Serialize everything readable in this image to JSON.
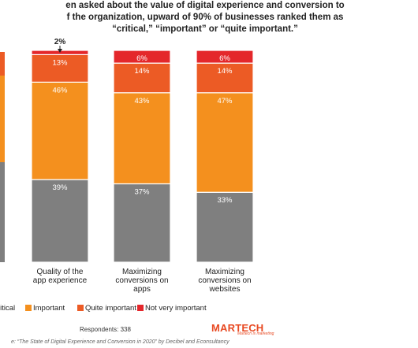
{
  "header": {
    "title_lines": [
      "en asked about the value of digital experience and conversion to",
      "f the organization, upward of 90% of businesses ranked them as",
      "“critical,” “important” or “quite important.”"
    ]
  },
  "chart_data": {
    "type": "bar",
    "stacked": true,
    "categories": [
      "",
      "Quality of the app experience",
      "Maximizing conversions on apps",
      "Maximizing conversions on websites"
    ],
    "category_lines": [
      [],
      [
        "Quality of the",
        "app experience"
      ],
      [
        "Maximizing",
        "conversions on",
        "apps"
      ],
      [
        "Maximizing",
        "conversions on",
        "websites"
      ]
    ],
    "series": [
      {
        "name": "ritical",
        "color": "#7f7f7f",
        "values": [
          null,
          39,
          37,
          33
        ],
        "labels": [
          "",
          "39%",
          "37%",
          "33%"
        ]
      },
      {
        "name": "Important",
        "color": "#f4901e",
        "values": [
          null,
          46,
          43,
          47
        ],
        "labels": [
          "",
          "46%",
          "43%",
          "47%"
        ]
      },
      {
        "name": "Quite important",
        "color": "#ec5b25",
        "values": [
          null,
          13,
          14,
          14
        ],
        "labels": [
          "",
          "13%",
          "14%",
          "14%"
        ]
      },
      {
        "name": "Not very important",
        "color": "#e4272b",
        "values": [
          null,
          2,
          6,
          6
        ],
        "labels": [
          "",
          "",
          "6%",
          "6%"
        ]
      }
    ],
    "callout": {
      "category_index": 1,
      "text": "2%"
    },
    "ylim": [
      0,
      100
    ],
    "grid": false,
    "legend_position": "bottom"
  },
  "footer": {
    "respondents": "Respondents: 338",
    "brand": "MARTECH",
    "brand_tagline": "Martech is marketing",
    "source": "e: “The State of Digital Experience and Conversion in 2020” by Decibel and Econsultancy"
  }
}
